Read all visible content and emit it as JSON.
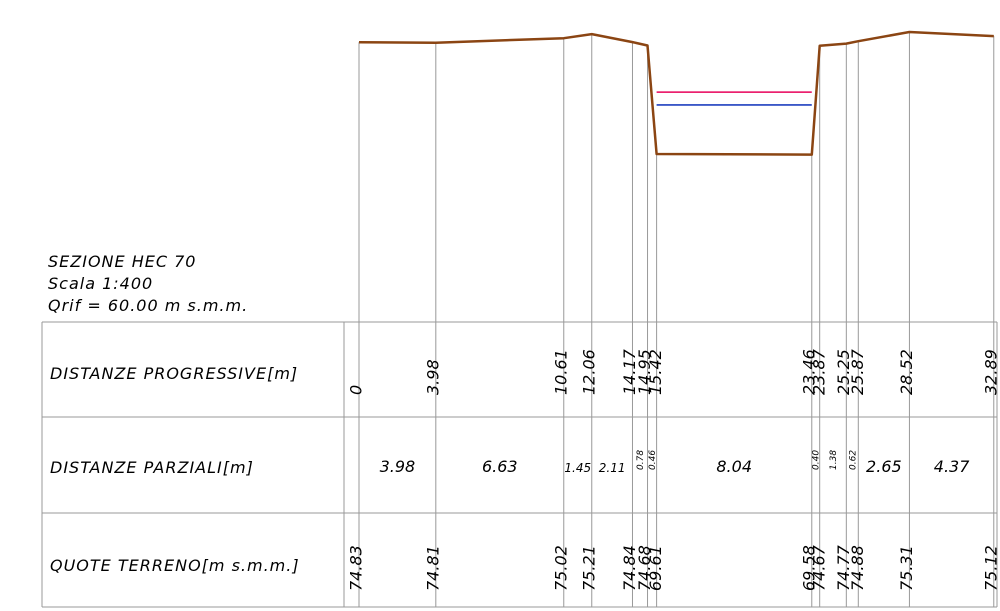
{
  "section": {
    "title": "SEZIONE HEC 70",
    "scale": "Scala 1:400",
    "qrif": "Qrif = 60.00 m s.m.m."
  },
  "rows": {
    "progressive_label": "DISTANZE PROGRESSIVE[m]",
    "partial_label": "DISTANZE PARZIALI[m]",
    "elevation_label": "QUOTE TERRENO[m s.m.m.]"
  },
  "colors": {
    "terrain": "#8B4513",
    "water_red": "#e8005a",
    "water_blue": "#1f3fbf",
    "grid": "#999999"
  },
  "chart_data": {
    "type": "line",
    "title": "SEZIONE HEC 70",
    "scale": "1:400",
    "reference_elevation": 60.0,
    "stations": [
      {
        "progressive": "0",
        "elevation": "74.83"
      },
      {
        "progressive": "3.98",
        "elevation": "74.81"
      },
      {
        "progressive": "10.61",
        "elevation": "75.02"
      },
      {
        "progressive": "12.06",
        "elevation": "75.21"
      },
      {
        "progressive": "14.17",
        "elevation": "74.84"
      },
      {
        "progressive": "14.95",
        "elevation": "74.68"
      },
      {
        "progressive": "15.42",
        "elevation": "69.61"
      },
      {
        "progressive": "23.46",
        "elevation": "69.58"
      },
      {
        "progressive": "23.87",
        "elevation": "74.67"
      },
      {
        "progressive": "25.25",
        "elevation": "74.77"
      },
      {
        "progressive": "25.87",
        "elevation": "74.88"
      },
      {
        "progressive": "28.52",
        "elevation": "75.31"
      },
      {
        "progressive": "32.89",
        "elevation": "75.12"
      }
    ],
    "partials": [
      {
        "value": "3.98",
        "size": "large"
      },
      {
        "value": "6.63",
        "size": "large"
      },
      {
        "value": "1.45",
        "size": "small"
      },
      {
        "value": "2.11",
        "size": "small"
      },
      {
        "value": "0.78",
        "size": "tiny"
      },
      {
        "value": "0.46",
        "size": "tiny"
      },
      {
        "value": "8.04",
        "size": "large"
      },
      {
        "value": "0.40",
        "size": "tiny"
      },
      {
        "value": "1.38",
        "size": "tiny"
      },
      {
        "value": "0.62",
        "size": "tiny"
      },
      {
        "value": "2.65",
        "size": "large"
      },
      {
        "value": "4.37",
        "size": "large"
      }
    ],
    "water_levels": [
      {
        "name": "red",
        "elevation": 72.5
      },
      {
        "name": "blue",
        "elevation": 71.9
      }
    ]
  }
}
